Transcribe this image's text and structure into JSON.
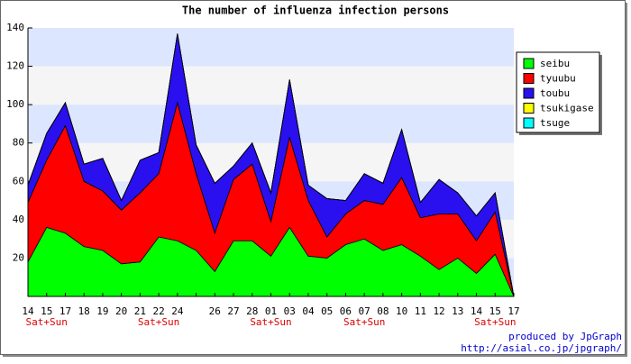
{
  "chart_data": {
    "type": "stacked_area",
    "title": "The number of influenza infection persons",
    "categories": [
      "14",
      "15",
      "17",
      "18",
      "19",
      "20",
      "21",
      "22",
      "24",
      null,
      "26",
      "27",
      "28",
      "01",
      "03",
      "04",
      "05",
      "06",
      "07",
      "08",
      "10",
      "11",
      "12",
      "13",
      "14",
      "15",
      "17"
    ],
    "sublabels": [
      null,
      "Sat+Sun",
      null,
      null,
      null,
      null,
      null,
      "Sat+Sun",
      null,
      null,
      null,
      null,
      null,
      "Sat+Sun",
      null,
      null,
      null,
      null,
      "Sat+Sun",
      null,
      null,
      null,
      null,
      null,
      null,
      "Sat+Sun",
      null
    ],
    "series": [
      {
        "name": "seibu",
        "color": "#00ff00",
        "values": [
          18,
          36,
          33,
          26,
          24,
          17,
          18,
          31,
          29,
          24,
          13,
          29,
          29,
          21,
          36,
          21,
          20,
          27,
          30,
          24,
          27,
          21,
          14,
          20,
          12,
          22,
          0
        ]
      },
      {
        "name": "tyuubu",
        "color": "#ff0000",
        "values": [
          31,
          35,
          56,
          34,
          31,
          28,
          36,
          33,
          72,
          40,
          20,
          32,
          40,
          18,
          47,
          29,
          11,
          16,
          20,
          24,
          35,
          20,
          29,
          23,
          17,
          22,
          0
        ]
      },
      {
        "name": "toubu",
        "color": "#2a10ee",
        "values": [
          9,
          14,
          12,
          9,
          17,
          5,
          17,
          11,
          36,
          15,
          26,
          7,
          11,
          15,
          30,
          8,
          20,
          7,
          14,
          11,
          25,
          8,
          18,
          11,
          13,
          10,
          0
        ]
      },
      {
        "name": "tsukigase",
        "color": "#ffff00",
        "values": [
          0,
          0,
          0,
          0,
          0,
          0,
          0,
          0,
          0,
          0,
          0,
          0,
          0,
          0,
          0,
          0,
          0,
          0,
          0,
          0,
          0,
          0,
          0,
          0,
          0,
          0,
          0
        ]
      },
      {
        "name": "tsuge",
        "color": "#00ffff",
        "values": [
          0,
          0,
          0,
          0,
          0,
          0,
          0,
          0,
          0,
          0,
          0,
          0,
          0,
          0,
          0,
          0,
          0,
          0,
          0,
          0,
          0,
          0,
          0,
          0,
          0,
          0,
          0
        ]
      }
    ],
    "ylim": [
      0,
      140
    ],
    "yticks": [
      20,
      40,
      60,
      80,
      100,
      120,
      140
    ],
    "grid_bands": [
      "#dde6ff",
      "#f5f5f5"
    ],
    "legend": "right",
    "credits": [
      "produced by JpGraph",
      "http://asial.co.jp/jpgraph/"
    ]
  }
}
